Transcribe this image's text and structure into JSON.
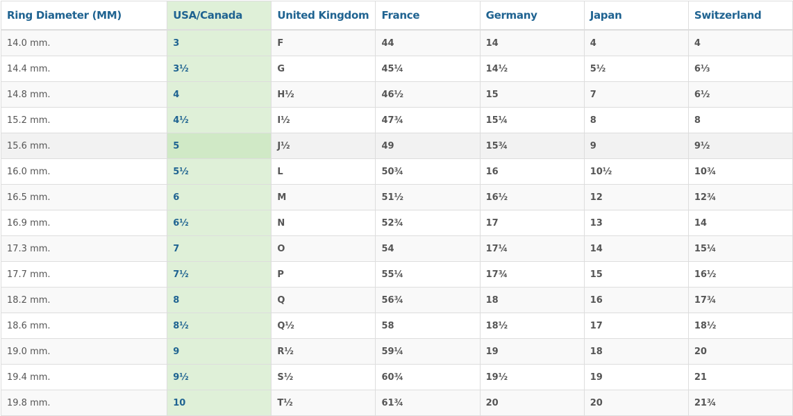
{
  "headers": [
    "Ring Diameter (MM)",
    "USA/Canada",
    "United Kingdom",
    "France",
    "Germany",
    "Japan",
    "Switzerland"
  ],
  "highlight_color": "#dff0d8",
  "header_color": "#1f6391",
  "rows": [
    [
      "14.0 mm.",
      "3",
      "F",
      "44",
      "14",
      "4",
      "4"
    ],
    [
      "14.4 mm.",
      "3½",
      "G",
      "45¼",
      "14½",
      "5½",
      "6⅓"
    ],
    [
      "14.8 mm.",
      "4",
      "H½",
      "46½",
      "15",
      "7",
      "6½"
    ],
    [
      "15.2 mm.",
      "4½",
      "I½",
      "47¾",
      "15¼",
      "8",
      "8"
    ],
    [
      "15.6 mm.",
      "5",
      "J½",
      "49",
      "15¾",
      "9",
      "9½"
    ],
    [
      "16.0 mm.",
      "5½",
      "L",
      "50¾",
      "16",
      "10½",
      "10¾"
    ],
    [
      "16.5 mm.",
      "6",
      "M",
      "51½",
      "16½",
      "12",
      "12¾"
    ],
    [
      "16.9 mm.",
      "6½",
      "N",
      "52¾",
      "17",
      "13",
      "14"
    ],
    [
      "17.3 mm.",
      "7",
      "O",
      "54",
      "17¼",
      "14",
      "15¼"
    ],
    [
      "17.7 mm.",
      "7½",
      "P",
      "55¼",
      "17¾",
      "15",
      "16½"
    ],
    [
      "18.2 mm.",
      "8",
      "Q",
      "56¾",
      "18",
      "16",
      "17¾"
    ],
    [
      "18.6 mm.",
      "8½",
      "Q½",
      "58",
      "18½",
      "17",
      "18½"
    ],
    [
      "19.0 mm.",
      "9",
      "R½",
      "59¼",
      "19",
      "18",
      "20"
    ],
    [
      "19.4 mm.",
      "9½",
      "S½",
      "60¾",
      "19½",
      "19",
      "21"
    ],
    [
      "19.8 mm.",
      "10",
      "T½",
      "61¾",
      "20",
      "20",
      "21¾"
    ]
  ]
}
